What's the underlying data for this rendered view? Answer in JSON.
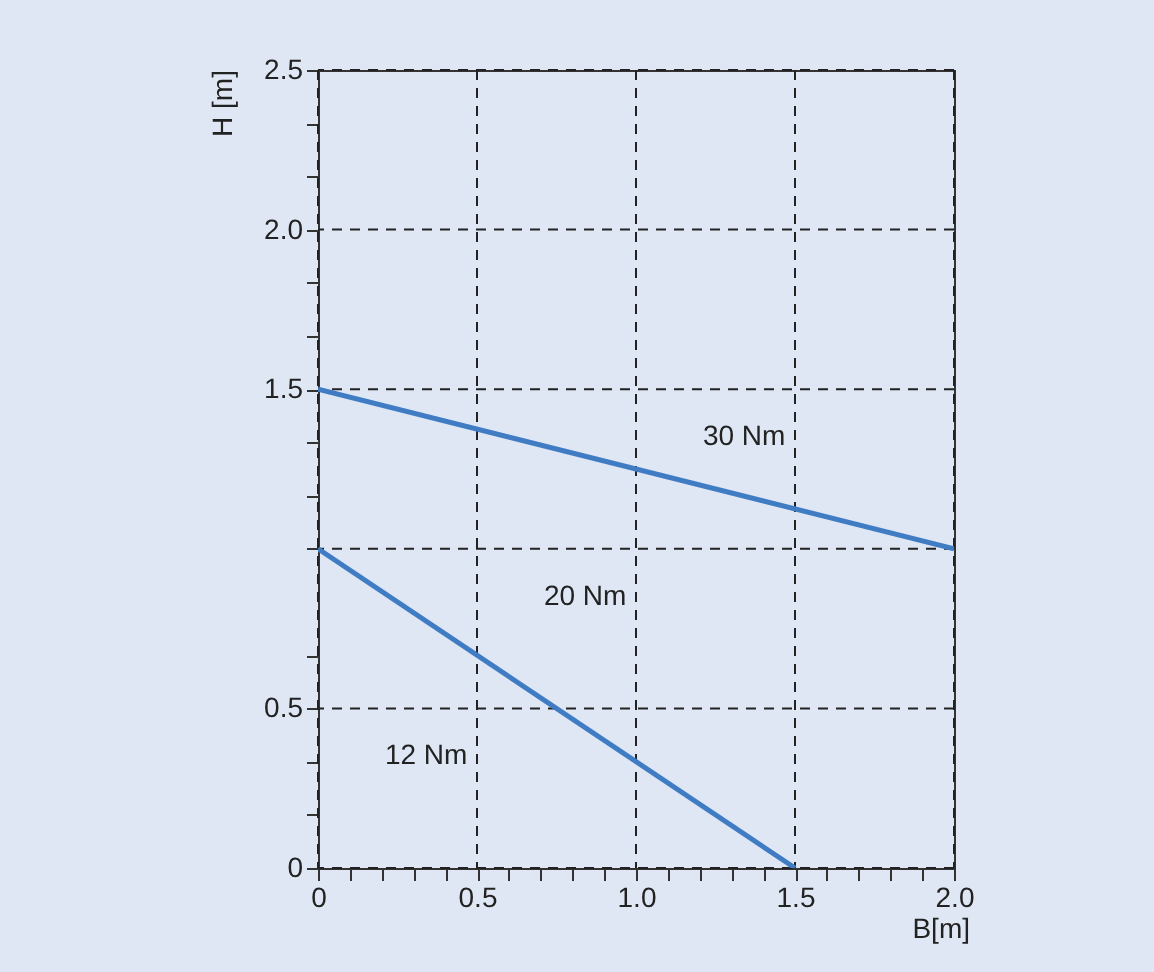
{
  "chart_data": {
    "type": "line",
    "xlabel": "B[m]",
    "ylabel": "H [m]",
    "series": [
      {
        "x": [
          0,
          2.0
        ],
        "values": [
          1.5,
          1.0
        ],
        "color": "#3f7cc4"
      },
      {
        "x": [
          0,
          1.5
        ],
        "values": [
          1.0,
          0
        ],
        "color": "#3f7cc4"
      }
    ],
    "xlim": [
      0,
      2.0
    ],
    "ylim": [
      0,
      2.5
    ],
    "xticks": [
      0,
      {
        "value": 0.1,
        "label": null
      },
      {
        "value": 0.2,
        "label": null
      },
      {
        "value": 0.3,
        "label": null
      },
      {
        "value": 0.4,
        "label": null
      },
      0.5,
      {
        "value": 0.6,
        "label": null
      },
      {
        "value": 0.7,
        "label": null
      },
      {
        "value": 0.8,
        "label": null
      },
      {
        "value": 0.9,
        "label": null
      },
      {
        "value": 1.0,
        "label": "1.0"
      },
      {
        "value": 1.1,
        "label": null
      },
      {
        "value": 1.2,
        "label": null
      },
      {
        "value": 1.3,
        "label": null
      },
      {
        "value": 1.4,
        "label": null
      },
      1.5,
      {
        "value": 1.6,
        "label": null
      },
      {
        "value": 1.7,
        "label": null
      },
      {
        "value": 1.8,
        "label": null
      },
      {
        "value": 1.9,
        "label": null
      },
      {
        "value": 2.0,
        "label": "2.0"
      }
    ],
    "yticks": [
      0,
      {
        "value": 0.1667,
        "label": null
      },
      {
        "value": 0.3333,
        "label": null
      },
      0.5,
      {
        "value": 0.6667,
        "label": null
      },
      {
        "value": 1.0,
        "label": null
      },
      {
        "value": 1.1667,
        "label": null
      },
      {
        "value": 1.3333,
        "label": null
      },
      1.5,
      {
        "value": 1.6667,
        "label": null
      },
      {
        "value": 1.8333,
        "label": null
      },
      {
        "value": 2.0,
        "label": "2.0"
      },
      {
        "value": 2.1667,
        "label": null
      },
      {
        "value": 2.3333,
        "label": null
      },
      2.5
    ],
    "grid": true,
    "line_style": "solid",
    "marker": "none",
    "annotations": [
      "30 Nm",
      "20 Nm",
      "12 Nm"
    ]
  }
}
